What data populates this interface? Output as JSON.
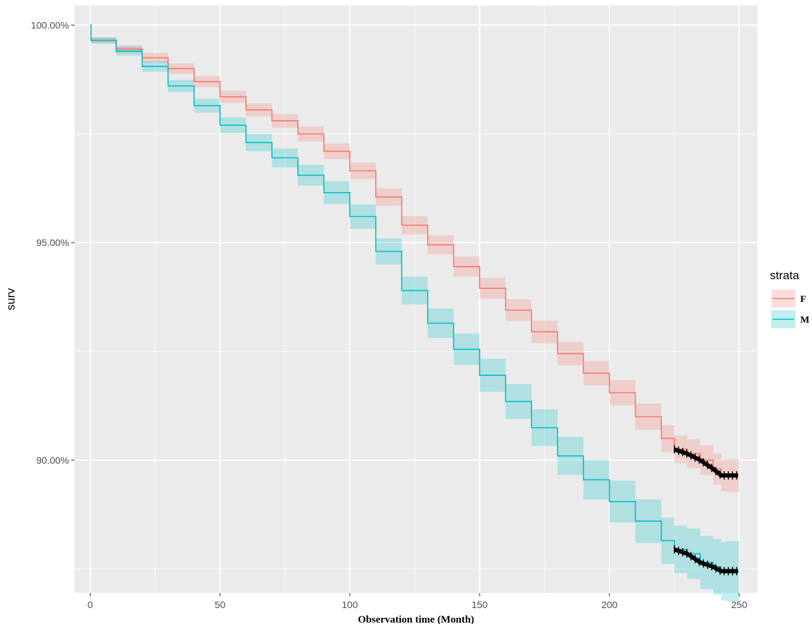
{
  "chart_data": {
    "type": "line",
    "title": "",
    "xlabel": "Observation time (Month)",
    "ylabel": "surv",
    "xlim": [
      -6,
      257
    ],
    "ylim": [
      86.95,
      100.45
    ],
    "x_ticks": [
      0,
      50,
      100,
      150,
      200,
      250
    ],
    "x_tick_labels": [
      "0",
      "50",
      "100",
      "150",
      "200",
      "250"
    ],
    "y_ticks": [
      90,
      95,
      100
    ],
    "y_tick_labels": [
      "90.00%",
      "95.00%",
      "100.00%"
    ],
    "grid": true,
    "legend": {
      "title": "strata",
      "position": "right"
    },
    "censor_mark_color": "#000000",
    "series": [
      {
        "name": "F",
        "color": "#F8766D",
        "band_color": "#F8766D",
        "x": [
          0,
          0.3,
          10,
          20,
          30,
          40,
          50,
          60,
          70,
          80,
          90,
          100,
          110,
          120,
          130,
          140,
          150,
          160,
          170,
          180,
          190,
          200,
          210,
          220,
          225,
          230,
          235,
          240,
          243,
          245,
          250
        ],
        "y": [
          100,
          99.65,
          99.45,
          99.25,
          99.0,
          98.7,
          98.35,
          98.05,
          97.8,
          97.5,
          97.1,
          96.65,
          96.05,
          95.4,
          94.95,
          94.45,
          93.95,
          93.45,
          92.95,
          92.45,
          92.0,
          91.55,
          91.0,
          90.5,
          90.25,
          90.15,
          90.0,
          89.8,
          89.65,
          89.65,
          89.65
        ],
        "lower": [
          100,
          99.58,
          99.36,
          99.14,
          98.88,
          98.57,
          98.21,
          97.9,
          97.64,
          97.33,
          96.92,
          96.46,
          95.85,
          95.19,
          94.73,
          94.22,
          93.71,
          93.2,
          92.69,
          92.18,
          91.72,
          91.26,
          90.7,
          90.19,
          89.93,
          89.82,
          89.66,
          89.44,
          89.28,
          89.27,
          89.26
        ],
        "upper": [
          100,
          99.72,
          99.54,
          99.36,
          99.12,
          98.83,
          98.49,
          98.2,
          97.96,
          97.67,
          97.28,
          96.84,
          96.25,
          95.61,
          95.17,
          94.68,
          94.19,
          93.7,
          93.21,
          92.72,
          92.28,
          91.84,
          91.3,
          90.81,
          90.57,
          90.48,
          90.34,
          90.16,
          90.02,
          90.03,
          90.04
        ],
        "censor_range": [
          225,
          250
        ]
      },
      {
        "name": "M",
        "color": "#00BFC4",
        "band_color": "#00BFC4",
        "x": [
          0,
          0.3,
          10,
          20,
          30,
          40,
          50,
          60,
          70,
          80,
          90,
          100,
          110,
          120,
          130,
          140,
          150,
          160,
          170,
          180,
          190,
          200,
          210,
          220,
          225,
          230,
          235,
          240,
          243,
          245,
          250
        ],
        "y": [
          100,
          99.65,
          99.4,
          99.05,
          98.6,
          98.15,
          97.7,
          97.3,
          96.95,
          96.55,
          96.15,
          95.6,
          94.8,
          93.9,
          93.15,
          92.55,
          91.95,
          91.35,
          90.75,
          90.1,
          89.55,
          89.05,
          88.6,
          88.15,
          87.95,
          87.85,
          87.65,
          87.55,
          87.45,
          87.45,
          87.45
        ],
        "lower": [
          100,
          99.58,
          99.3,
          98.93,
          98.46,
          97.99,
          97.52,
          97.1,
          96.73,
          96.31,
          95.89,
          95.32,
          94.5,
          93.58,
          92.81,
          92.19,
          91.57,
          90.95,
          90.33,
          89.66,
          89.09,
          88.57,
          88.1,
          87.62,
          87.4,
          87.27,
          87.04,
          86.91,
          86.78,
          86.76,
          86.72
        ],
        "upper": [
          100,
          99.72,
          99.5,
          99.17,
          98.74,
          98.31,
          97.88,
          97.5,
          97.17,
          96.79,
          96.41,
          95.88,
          95.1,
          94.22,
          93.49,
          92.91,
          92.33,
          91.75,
          91.17,
          90.54,
          90.01,
          89.53,
          89.1,
          88.68,
          88.5,
          88.43,
          88.26,
          88.19,
          88.12,
          88.14,
          88.18
        ],
        "censor_range": [
          225,
          250
        ]
      }
    ]
  }
}
